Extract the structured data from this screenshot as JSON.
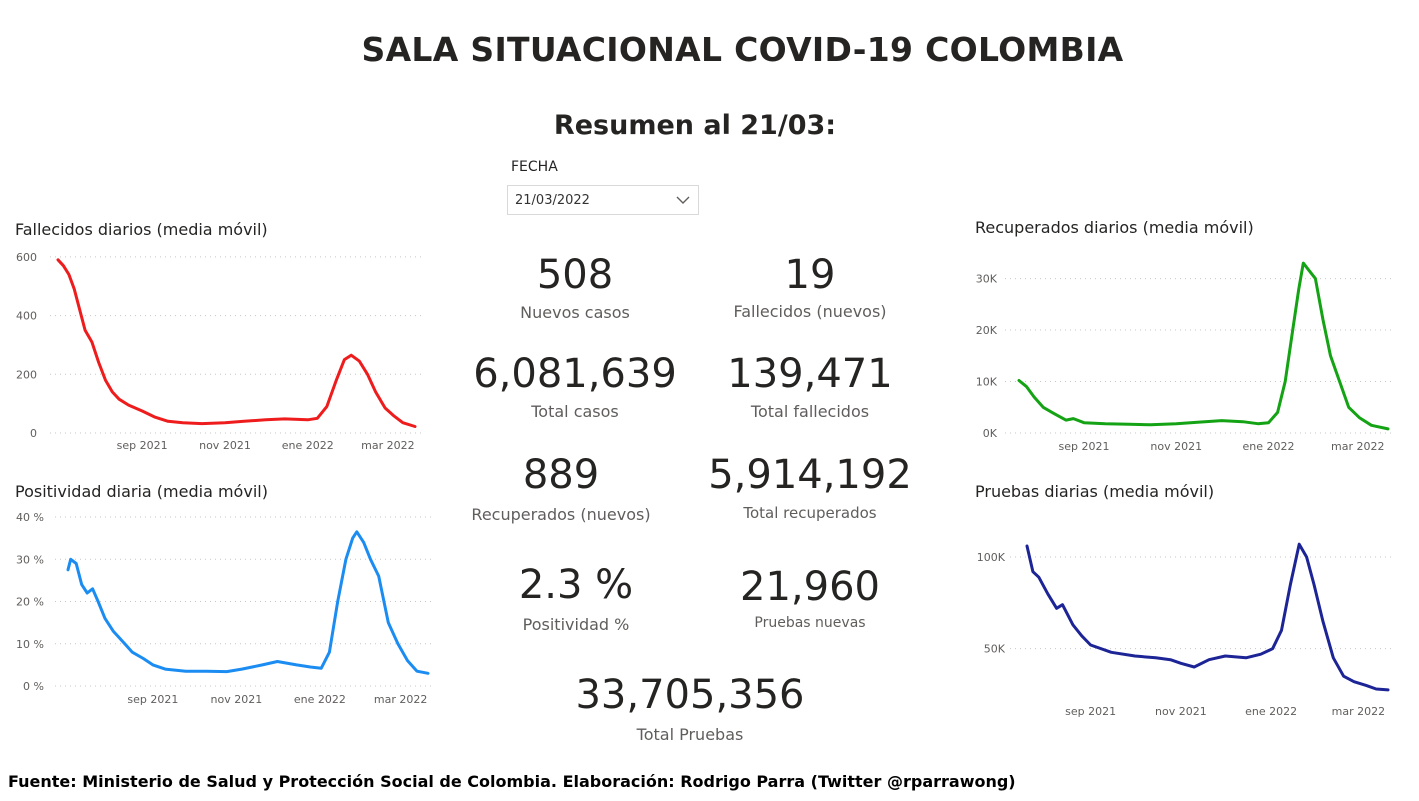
{
  "title": "SALA SITUACIONAL COVID-19 COLOMBIA",
  "subtitle": "Resumen al 21/03:",
  "slicer": {
    "label": "FECHA",
    "value": "21/03/2022"
  },
  "kpis": {
    "nuevos_casos": {
      "value": "508",
      "label": "Nuevos casos"
    },
    "fallecidos_nuevos": {
      "value": "19",
      "label": "Fallecidos (nuevos)"
    },
    "total_casos": {
      "value": "6,081,639",
      "label": "Total casos"
    },
    "total_fallecidos": {
      "value": "139,471",
      "label": "Total fallecidos"
    },
    "recuperados_nuevos": {
      "value": "889",
      "label": "Recuperados (nuevos)"
    },
    "total_recuperados": {
      "value": "5,914,192",
      "label": "Total recuperados"
    },
    "positividad": {
      "value": "2.3 %",
      "label": "Positividad %"
    },
    "pruebas_nuevas": {
      "value": "21,960",
      "label": "Pruebas nuevas"
    },
    "total_pruebas": {
      "value": "33,705,356",
      "label": "Total Pruebas"
    }
  },
  "footer": "Fuente: Ministerio de Salud y Protección Social de Colombia. Elaboración: Rodrigo Parra (Twitter @rparrawong)",
  "chart_data": [
    {
      "id": "fallecidos",
      "type": "line",
      "title": "Fallecidos diarios (media móvil)",
      "color": "#ee1c1c",
      "x_start": "2021-07-01",
      "x_end": "2022-03-21",
      "x_ticks": [
        {
          "date": "2021-09-01",
          "label": "sep 2021"
        },
        {
          "date": "2021-11-01",
          "label": "nov 2021"
        },
        {
          "date": "2022-01-01",
          "label": "ene 2022"
        },
        {
          "date": "2022-03-01",
          "label": "mar 2022"
        }
      ],
      "ylim": [
        0,
        620
      ],
      "y_ticks": [
        {
          "value": 0,
          "label": "0"
        },
        {
          "value": 200,
          "label": "200"
        },
        {
          "value": 400,
          "label": "400"
        },
        {
          "value": 600,
          "label": "600"
        }
      ],
      "points": [
        [
          "2021-07-01",
          590
        ],
        [
          "2021-07-05",
          570
        ],
        [
          "2021-07-09",
          540
        ],
        [
          "2021-07-13",
          490
        ],
        [
          "2021-07-17",
          420
        ],
        [
          "2021-07-21",
          350
        ],
        [
          "2021-07-26",
          310
        ],
        [
          "2021-07-31",
          240
        ],
        [
          "2021-08-05",
          180
        ],
        [
          "2021-08-10",
          140
        ],
        [
          "2021-08-15",
          115
        ],
        [
          "2021-08-22",
          95
        ],
        [
          "2021-09-01",
          75
        ],
        [
          "2021-09-10",
          55
        ],
        [
          "2021-09-20",
          40
        ],
        [
          "2021-10-01",
          35
        ],
        [
          "2021-10-15",
          32
        ],
        [
          "2021-11-01",
          35
        ],
        [
          "2021-11-15",
          40
        ],
        [
          "2021-12-01",
          45
        ],
        [
          "2021-12-15",
          48
        ],
        [
          "2022-01-01",
          45
        ],
        [
          "2022-01-08",
          50
        ],
        [
          "2022-01-15",
          90
        ],
        [
          "2022-01-22",
          180
        ],
        [
          "2022-01-28",
          250
        ],
        [
          "2022-02-02",
          265
        ],
        [
          "2022-02-08",
          245
        ],
        [
          "2022-02-14",
          200
        ],
        [
          "2022-02-20",
          140
        ],
        [
          "2022-02-27",
          85
        ],
        [
          "2022-03-05",
          60
        ],
        [
          "2022-03-12",
          35
        ],
        [
          "2022-03-21",
          22
        ]
      ]
    },
    {
      "id": "positividad",
      "type": "line",
      "title": "Positividad diaria (media móvil)",
      "color": "#1b8cf2",
      "x_start": "2021-07-01",
      "x_end": "2022-03-21",
      "x_ticks": [
        {
          "date": "2021-09-01",
          "label": "sep 2021"
        },
        {
          "date": "2021-11-01",
          "label": "nov 2021"
        },
        {
          "date": "2022-01-01",
          "label": "ene 2022"
        },
        {
          "date": "2022-03-01",
          "label": "mar 2022"
        }
      ],
      "ylim": [
        0,
        40
      ],
      "y_ticks": [
        {
          "value": 0,
          "label": "0 %"
        },
        {
          "value": 10,
          "label": "10 %"
        },
        {
          "value": 20,
          "label": "20 %"
        },
        {
          "value": 30,
          "label": "30 %"
        },
        {
          "value": 40,
          "label": "40 %"
        }
      ],
      "points": [
        [
          "2021-07-01",
          27.5
        ],
        [
          "2021-07-03",
          30
        ],
        [
          "2021-07-07",
          29
        ],
        [
          "2021-07-11",
          24
        ],
        [
          "2021-07-15",
          22
        ],
        [
          "2021-07-19",
          23
        ],
        [
          "2021-07-23",
          20
        ],
        [
          "2021-07-28",
          16
        ],
        [
          "2021-08-03",
          13
        ],
        [
          "2021-08-10",
          10.5
        ],
        [
          "2021-08-17",
          8
        ],
        [
          "2021-08-25",
          6.5
        ],
        [
          "2021-09-01",
          5
        ],
        [
          "2021-09-10",
          4
        ],
        [
          "2021-09-25",
          3.5
        ],
        [
          "2021-10-10",
          3.5
        ],
        [
          "2021-10-25",
          3.4
        ],
        [
          "2021-11-05",
          4
        ],
        [
          "2021-11-20",
          5
        ],
        [
          "2021-12-01",
          5.8
        ],
        [
          "2021-12-15",
          5
        ],
        [
          "2021-12-25",
          4.5
        ],
        [
          "2022-01-02",
          4.2
        ],
        [
          "2022-01-08",
          8
        ],
        [
          "2022-01-14",
          20
        ],
        [
          "2022-01-20",
          30
        ],
        [
          "2022-01-25",
          35
        ],
        [
          "2022-01-28",
          36.5
        ],
        [
          "2022-02-02",
          34
        ],
        [
          "2022-02-07",
          30
        ],
        [
          "2022-02-13",
          26
        ],
        [
          "2022-02-20",
          15
        ],
        [
          "2022-02-27",
          10
        ],
        [
          "2022-03-06",
          6
        ],
        [
          "2022-03-13",
          3.5
        ],
        [
          "2022-03-21",
          3
        ]
      ]
    },
    {
      "id": "recuperados",
      "type": "line",
      "title": "Recuperados diarios (media móvil)",
      "color": "#14a314",
      "x_start": "2021-07-20",
      "x_end": "2022-03-21",
      "x_ticks": [
        {
          "date": "2021-09-01",
          "label": "sep 2021"
        },
        {
          "date": "2021-11-01",
          "label": "nov 2021"
        },
        {
          "date": "2022-01-01",
          "label": "ene 2022"
        },
        {
          "date": "2022-03-01",
          "label": "mar 2022"
        }
      ],
      "ylim": [
        0,
        34000
      ],
      "y_ticks": [
        {
          "value": 0,
          "label": "0K"
        },
        {
          "value": 10000,
          "label": "10K"
        },
        {
          "value": 20000,
          "label": "20K"
        },
        {
          "value": 30000,
          "label": "30K"
        }
      ],
      "points": [
        [
          "2021-07-20",
          10200
        ],
        [
          "2021-07-25",
          9000
        ],
        [
          "2021-07-30",
          7000
        ],
        [
          "2021-08-05",
          5000
        ],
        [
          "2021-08-12",
          3800
        ],
        [
          "2021-08-20",
          2500
        ],
        [
          "2021-08-25",
          2800
        ],
        [
          "2021-09-01",
          2000
        ],
        [
          "2021-09-15",
          1800
        ],
        [
          "2021-10-01",
          1700
        ],
        [
          "2021-10-15",
          1600
        ],
        [
          "2021-11-01",
          1800
        ],
        [
          "2021-11-15",
          2100
        ],
        [
          "2021-12-01",
          2400
        ],
        [
          "2021-12-15",
          2200
        ],
        [
          "2021-12-25",
          1800
        ],
        [
          "2022-01-01",
          2000
        ],
        [
          "2022-01-07",
          4000
        ],
        [
          "2022-01-12",
          10000
        ],
        [
          "2022-01-17",
          20000
        ],
        [
          "2022-01-21",
          28000
        ],
        [
          "2022-01-24",
          33000
        ],
        [
          "2022-01-28",
          31500
        ],
        [
          "2022-02-01",
          30000
        ],
        [
          "2022-02-06",
          22000
        ],
        [
          "2022-02-11",
          15000
        ],
        [
          "2022-02-17",
          10000
        ],
        [
          "2022-02-23",
          5000
        ],
        [
          "2022-03-02",
          3000
        ],
        [
          "2022-03-10",
          1500
        ],
        [
          "2022-03-21",
          800
        ]
      ]
    },
    {
      "id": "pruebas",
      "type": "line",
      "title": "Pruebas diarias (media móvil)",
      "color": "#1c2496",
      "x_start": "2021-07-20",
      "x_end": "2022-03-21",
      "x_ticks": [
        {
          "date": "2021-09-01",
          "label": "sep 2021"
        },
        {
          "date": "2021-11-01",
          "label": "nov 2021"
        },
        {
          "date": "2022-01-01",
          "label": "ene 2022"
        },
        {
          "date": "2022-03-01",
          "label": "mar 2022"
        }
      ],
      "ylim": [
        22000,
        112000
      ],
      "y_ticks": [
        {
          "value": 50000,
          "label": "50K"
        },
        {
          "value": 100000,
          "label": "100K"
        }
      ],
      "points": [
        [
          "2021-07-20",
          106000
        ],
        [
          "2021-07-24",
          92000
        ],
        [
          "2021-07-28",
          89000
        ],
        [
          "2021-08-03",
          80000
        ],
        [
          "2021-08-09",
          72000
        ],
        [
          "2021-08-13",
          74000
        ],
        [
          "2021-08-20",
          63000
        ],
        [
          "2021-08-26",
          57000
        ],
        [
          "2021-09-01",
          52000
        ],
        [
          "2021-09-15",
          48000
        ],
        [
          "2021-10-01",
          46000
        ],
        [
          "2021-10-15",
          45000
        ],
        [
          "2021-10-25",
          44000
        ],
        [
          "2021-11-01",
          42000
        ],
        [
          "2021-11-10",
          40000
        ],
        [
          "2021-11-20",
          44000
        ],
        [
          "2021-12-01",
          46000
        ],
        [
          "2021-12-15",
          45000
        ],
        [
          "2021-12-25",
          47000
        ],
        [
          "2022-01-02",
          50000
        ],
        [
          "2022-01-08",
          60000
        ],
        [
          "2022-01-14",
          85000
        ],
        [
          "2022-01-20",
          107000
        ],
        [
          "2022-01-25",
          100000
        ],
        [
          "2022-01-30",
          85000
        ],
        [
          "2022-02-05",
          65000
        ],
        [
          "2022-02-12",
          45000
        ],
        [
          "2022-02-19",
          35000
        ],
        [
          "2022-02-26",
          32000
        ],
        [
          "2022-03-06",
          30000
        ],
        [
          "2022-03-13",
          28000
        ],
        [
          "2022-03-21",
          27500
        ]
      ]
    }
  ]
}
